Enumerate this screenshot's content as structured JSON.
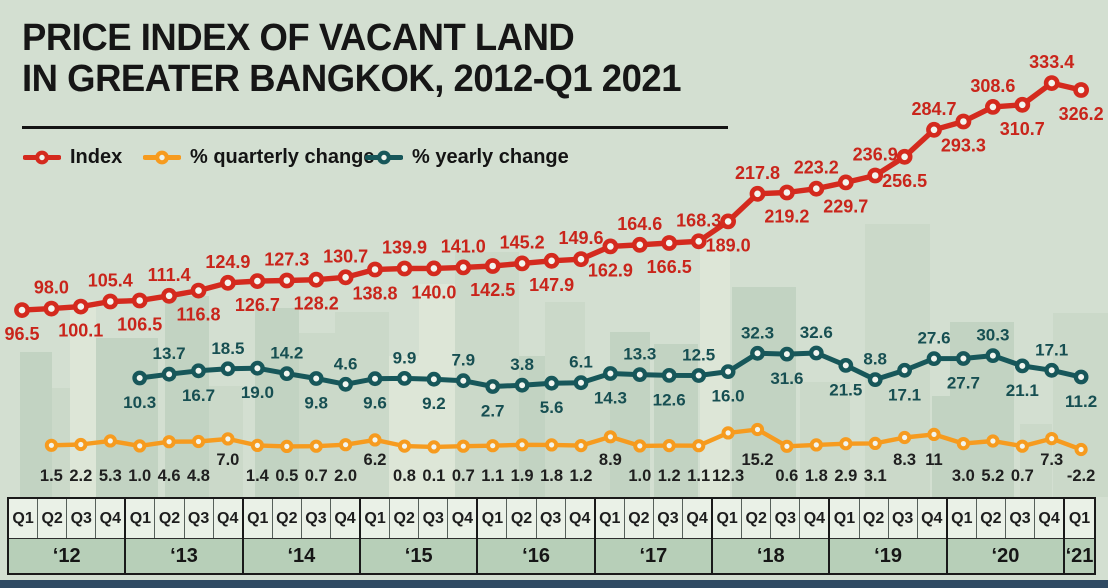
{
  "title": {
    "line1": "PRICE INDEX OF VACANT LAND",
    "line2": "IN GREATER BANGKOK, 2012-Q1 2021"
  },
  "legend": [
    {
      "label": "Index",
      "color": "#d42a1e"
    },
    {
      "label": "% quarterly change",
      "color": "#f69b1f"
    },
    {
      "label": "% yearly change",
      "color": "#17575a"
    }
  ],
  "colors": {
    "background": "#d3dfd1",
    "title_text": "#161616",
    "index_line": "#d42a1e",
    "index_label": "#c9251b",
    "quarterly_line": "#f69b1f",
    "quarterly_label": "#1f1f1f",
    "yearly_line": "#17575a",
    "yearly_label": "#174f52",
    "footer_bar": "#2f4a63",
    "axis_quarter_cell": "#eaf1e7",
    "axis_year_band": "#b7cfb8"
  },
  "axis": {
    "years": [
      {
        "label": "‘12",
        "quarters": [
          "Q1",
          "Q2",
          "Q3",
          "Q4"
        ]
      },
      {
        "label": "‘13",
        "quarters": [
          "Q1",
          "Q2",
          "Q3",
          "Q4"
        ]
      },
      {
        "label": "‘14",
        "quarters": [
          "Q1",
          "Q2",
          "Q3",
          "Q4"
        ]
      },
      {
        "label": "‘15",
        "quarters": [
          "Q1",
          "Q2",
          "Q3",
          "Q4"
        ]
      },
      {
        "label": "‘16",
        "quarters": [
          "Q1",
          "Q2",
          "Q3",
          "Q4"
        ]
      },
      {
        "label": "‘17",
        "quarters": [
          "Q1",
          "Q2",
          "Q3",
          "Q4"
        ]
      },
      {
        "label": "‘18",
        "quarters": [
          "Q1",
          "Q2",
          "Q3",
          "Q4"
        ]
      },
      {
        "label": "‘19",
        "quarters": [
          "Q1",
          "Q2",
          "Q3",
          "Q4"
        ]
      },
      {
        "label": "‘20",
        "quarters": [
          "Q1",
          "Q2",
          "Q3",
          "Q4"
        ]
      },
      {
        "label": "‘21",
        "quarters": [
          "Q1"
        ]
      }
    ]
  },
  "chart_data": {
    "type": "line",
    "title": "PRICE INDEX OF VACANT LAND IN GREATER BANGKOK, 2012-Q1 2021",
    "xlabel": "Quarter / Year",
    "ylabel": "",
    "grid": false,
    "legend_position": "top-left",
    "categories": [
      "Q1 '12",
      "Q2 '12",
      "Q3 '12",
      "Q4 '12",
      "Q1 '13",
      "Q2 '13",
      "Q3 '13",
      "Q4 '13",
      "Q1 '14",
      "Q2 '14",
      "Q3 '14",
      "Q4 '14",
      "Q1 '15",
      "Q2 '15",
      "Q3 '15",
      "Q4 '15",
      "Q1 '16",
      "Q2 '16",
      "Q3 '16",
      "Q4 '16",
      "Q1 '17",
      "Q2 '17",
      "Q3 '17",
      "Q4 '17",
      "Q1 '18",
      "Q2 '18",
      "Q3 '18",
      "Q4 '18",
      "Q1 '19",
      "Q2 '19",
      "Q3 '19",
      "Q4 '19",
      "Q1 '20",
      "Q2 '20",
      "Q3 '20",
      "Q4 '20",
      "Q1 '21"
    ],
    "series": [
      {
        "name": "Index",
        "color": "#d42a1e",
        "label_color": "#c9251b",
        "start_index": 0,
        "values": [
          96.5,
          98.0,
          100.1,
          105.4,
          106.5,
          111.4,
          116.8,
          124.9,
          126.7,
          127.3,
          128.2,
          130.7,
          138.8,
          139.9,
          140.0,
          141.0,
          142.5,
          145.2,
          147.9,
          149.6,
          162.9,
          164.6,
          166.5,
          168.3,
          189.0,
          217.8,
          219.2,
          223.2,
          229.7,
          236.9,
          256.5,
          284.7,
          293.3,
          308.6,
          310.7,
          333.4,
          326.2
        ],
        "labels": [
          "96.5",
          "98.0",
          "100.1",
          "105.4",
          "106.5",
          "111.4",
          "116.8",
          "124.9",
          "126.7",
          "127.3",
          "128.2",
          "130.7",
          "138.8",
          "139.9",
          "140.0",
          "141.0",
          "142.5",
          "145.2",
          "147.9",
          "149.6",
          "162.9",
          "164.6",
          "166.5",
          "168.3",
          "189.0",
          "217.8",
          "219.2",
          "223.2",
          "229.7",
          "236.9",
          "256.5",
          "284.7",
          "293.3",
          "308.6",
          "310.7",
          "333.4",
          "326.2"
        ]
      },
      {
        "name": "% quarterly change",
        "color": "#f69b1f",
        "label_color": "#1f1f1f",
        "start_index": 1,
        "values": [
          1.5,
          2.2,
          5.3,
          1.0,
          4.6,
          4.8,
          7.0,
          1.4,
          0.5,
          0.7,
          2.0,
          6.2,
          0.8,
          0.1,
          0.7,
          1.1,
          1.9,
          1.8,
          1.2,
          8.9,
          1.0,
          1.2,
          1.1,
          12.3,
          15.2,
          0.6,
          1.8,
          2.9,
          3.1,
          8.3,
          11,
          3.0,
          5.2,
          0.7,
          7.3,
          -2.2
        ],
        "labels": [
          "1.5",
          "2.2",
          "5.3",
          "1.0",
          "4.6",
          "4.8",
          "7.0",
          "1.4",
          "0.5",
          "0.7",
          "2.0",
          "6.2",
          "0.8",
          "0.1",
          "0.7",
          "1.1",
          "1.9",
          "1.8",
          "1.2",
          "8.9",
          "1.0",
          "1.2",
          "1.1",
          "12.3",
          "15.2",
          "0.6",
          "1.8",
          "2.9",
          "3.1",
          "8.3",
          "11",
          "3.0",
          "5.2",
          "0.7",
          "7.3",
          "-2.2"
        ],
        "raised_label_indices": [
          6,
          11,
          19,
          24,
          29,
          30,
          34
        ]
      },
      {
        "name": "% yearly change",
        "color": "#17575a",
        "label_color": "#174f52",
        "start_index": 4,
        "values": [
          10.3,
          13.7,
          16.7,
          18.5,
          19.0,
          14.2,
          9.8,
          4.6,
          9.6,
          9.9,
          9.2,
          7.9,
          2.7,
          3.8,
          5.6,
          6.1,
          14.3,
          13.3,
          12.6,
          12.5,
          16.0,
          32.3,
          31.6,
          32.6,
          21.5,
          8.8,
          17.1,
          27.6,
          27.7,
          30.3,
          21.1,
          17.1,
          11.2
        ],
        "labels": [
          "10.3",
          "13.7",
          "16.7",
          "18.5",
          "19.0",
          "14.2",
          "9.8",
          "4.6",
          "9.6",
          "9.9",
          "9.2",
          "7.9",
          "2.7",
          "3.8",
          "5.6",
          "6.1",
          "14.3",
          "13.3",
          "12.6",
          "12.5",
          "16.0",
          "32.3",
          "31.6",
          "32.6",
          "21.5",
          "8.8",
          "17.1",
          "27.6",
          "27.7",
          "30.3",
          "21.1",
          "17.1",
          "11.2"
        ]
      }
    ]
  }
}
